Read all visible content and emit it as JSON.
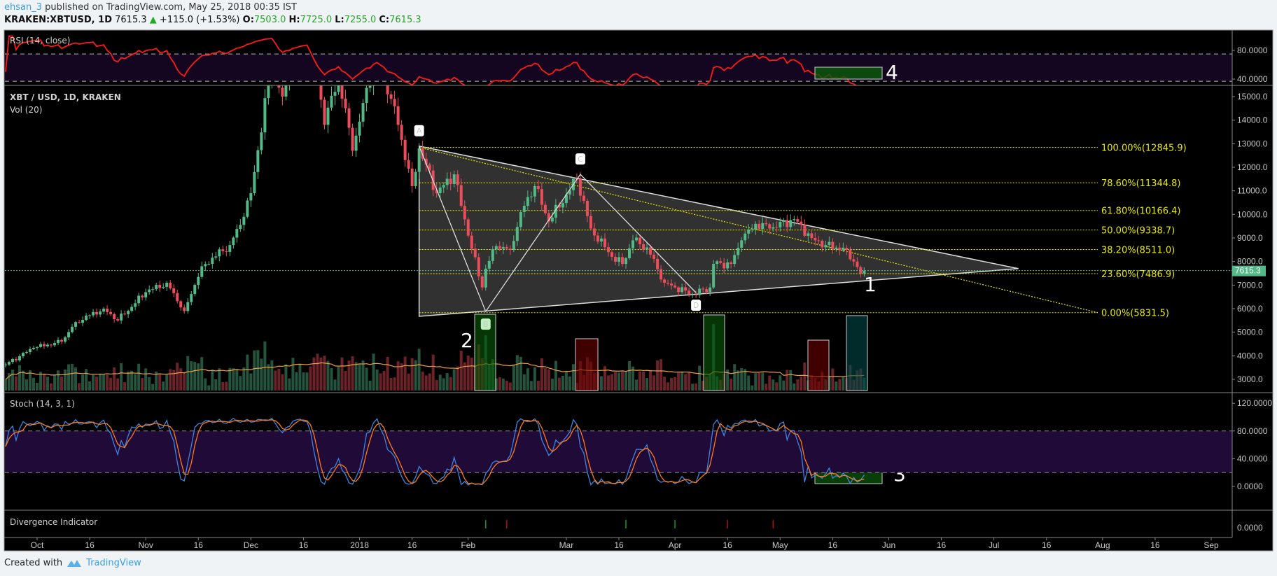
{
  "header": {
    "author": "ehsan_3",
    "published": "published on TradingView.com, May 25, 2018 00:35 IST",
    "symbol": "KRAKEN:XBTUSD, 1D",
    "last": "7615.3",
    "change": "+115.0 (+1.53%)",
    "o_label": "O:",
    "o": "7503.0",
    "h_label": "H:",
    "h": "7725.0",
    "l_label": "L:",
    "l": "7255.0",
    "c_label": "C:",
    "c": "7615.3"
  },
  "footer": {
    "created_with": "Created with",
    "brand": "TradingView"
  },
  "colors": {
    "up": "#53b987",
    "down": "#eb4d5c",
    "rsi": "#ff1a1a",
    "stoch_k": "#3d85e0",
    "stoch_d": "#ff7a1a",
    "fib": "#e8e800",
    "price_line": "#53b987"
  },
  "chart_data": {
    "type": "candlestick",
    "title": "XBT / USD, 1D, KRAKEN",
    "volume_label": "Vol (20)",
    "rsi_label": "RSI (14, close)",
    "stoch_label": "Stoch (14, 3, 1)",
    "divergence_label": "Divergence Indicator",
    "close_anchors": [
      [
        "2017-09-22",
        3630
      ],
      [
        "2017-09-30",
        4340
      ],
      [
        "2017-10-08",
        4600
      ],
      [
        "2017-10-12",
        5430
      ],
      [
        "2017-10-20",
        6000
      ],
      [
        "2017-10-24",
        5500
      ],
      [
        "2017-11-01",
        6700
      ],
      [
        "2017-11-07",
        7100
      ],
      [
        "2017-11-12",
        5900
      ],
      [
        "2017-11-17",
        7800
      ],
      [
        "2017-11-25",
        8700
      ],
      [
        "2017-11-29",
        9900
      ],
      [
        "2017-12-01",
        10900
      ],
      [
        "2017-12-07",
        16500
      ],
      [
        "2017-12-10",
        15000
      ],
      [
        "2017-12-17",
        19100
      ],
      [
        "2017-12-22",
        13800
      ],
      [
        "2017-12-26",
        15900
      ],
      [
        "2017-12-30",
        12700
      ],
      [
        "2018-01-06",
        17100
      ],
      [
        "2018-01-10",
        14900
      ],
      [
        "2018-01-12",
        13800
      ],
      [
        "2018-01-16",
        11200
      ],
      [
        "2018-01-18",
        12800
      ],
      [
        "2018-01-23",
        10900
      ],
      [
        "2018-01-28",
        11700
      ],
      [
        "2018-02-01",
        9100
      ],
      [
        "2018-02-05",
        6900
      ],
      [
        "2018-02-06",
        7700
      ],
      [
        "2018-02-09",
        8650
      ],
      [
        "2018-02-13",
        8500
      ],
      [
        "2018-02-16",
        10100
      ],
      [
        "2018-02-20",
        11200
      ],
      [
        "2018-02-24",
        9700
      ],
      [
        "2018-03-04",
        11500
      ],
      [
        "2018-03-08",
        9400
      ],
      [
        "2018-03-14",
        8200
      ],
      [
        "2018-03-17",
        7900
      ],
      [
        "2018-03-20",
        8900
      ],
      [
        "2018-03-24",
        8600
      ],
      [
        "2018-03-29",
        7100
      ],
      [
        "2018-04-01",
        6900
      ],
      [
        "2018-04-06",
        6600
      ],
      [
        "2018-04-11",
        6900
      ],
      [
        "2018-04-12",
        7900
      ],
      [
        "2018-04-17",
        7900
      ],
      [
        "2018-04-20",
        8900
      ],
      [
        "2018-04-24",
        9600
      ],
      [
        "2018-04-28",
        9400
      ],
      [
        "2018-05-05",
        9800
      ],
      [
        "2018-05-10",
        9000
      ],
      [
        "2018-05-14",
        8700
      ],
      [
        "2018-05-20",
        8500
      ],
      [
        "2018-05-22",
        8000
      ],
      [
        "2018-05-24",
        7500
      ],
      [
        "2018-05-25",
        7615.3
      ]
    ],
    "last_price": 7615.3,
    "last_price_label": "7615.3",
    "price_axis": {
      "range": [
        2500,
        15500
      ],
      "ticks": [
        15000,
        14000,
        13000,
        12000,
        11000,
        10000,
        9000,
        8000,
        7000,
        6000,
        5000,
        4000,
        3000
      ],
      "labels": [
        "15000.0",
        "14000.0",
        "13000.0",
        "12000.0",
        "11000.0",
        "10000.0",
        "9000.0",
        "8000.0",
        "7000.0",
        "6000.0",
        "5000.0",
        "4000.0",
        "3000.0"
      ]
    },
    "rsi_axis": {
      "ticks": [
        80,
        40
      ],
      "labels": [
        "80.0000",
        "40.0000"
      ],
      "bands": [
        75,
        37
      ]
    },
    "stoch_axis": {
      "ticks": [
        120,
        80,
        40,
        0
      ],
      "labels": [
        "120.0000",
        "80.0000",
        "40.0000",
        "0.0000"
      ],
      "bands": [
        80,
        20
      ]
    },
    "divergence_axis": {
      "labels": [
        "0.0000"
      ]
    },
    "time_axis": [
      {
        "label": "Oct",
        "date": "2017-10-01"
      },
      {
        "label": "16",
        "date": "2017-10-16"
      },
      {
        "label": "Nov",
        "date": "2017-11-01"
      },
      {
        "label": "16",
        "date": "2017-11-16"
      },
      {
        "label": "Dec",
        "date": "2017-12-01"
      },
      {
        "label": "16",
        "date": "2017-12-16"
      },
      {
        "label": "2018",
        "date": "2018-01-01"
      },
      {
        "label": "16",
        "date": "2018-01-16"
      },
      {
        "label": "Feb",
        "date": "2018-02-01"
      },
      {
        "label": "Mar",
        "date": "2018-03-01"
      },
      {
        "label": "16",
        "date": "2018-03-16"
      },
      {
        "label": "Apr",
        "date": "2018-04-01"
      },
      {
        "label": "16",
        "date": "2018-04-16"
      },
      {
        "label": "May",
        "date": "2018-05-01"
      },
      {
        "label": "16",
        "date": "2018-05-16"
      },
      {
        "label": "Jun",
        "date": "2018-06-01"
      },
      {
        "label": "16",
        "date": "2018-06-16"
      },
      {
        "label": "Jul",
        "date": "2018-07-01"
      },
      {
        "label": "16",
        "date": "2018-07-16"
      },
      {
        "label": "Aug",
        "date": "2018-08-01"
      },
      {
        "label": "16",
        "date": "2018-08-16"
      },
      {
        "label": "Sep",
        "date": "2018-09-01"
      }
    ],
    "fib_levels": [
      {
        "label": "100.00%(12845.9)",
        "price": 12845.9
      },
      {
        "label": "78.60%(11344.8)",
        "price": 11344.8
      },
      {
        "label": "61.80%(10166.4)",
        "price": 10166.4
      },
      {
        "label": "50.00%(9338.7)",
        "price": 9338.7
      },
      {
        "label": "38.20%(8511.0)",
        "price": 8511.0
      },
      {
        "label": "23.60%(7486.9)",
        "price": 7486.9
      },
      {
        "label": "0.00%(5831.5)",
        "price": 5831.5
      }
    ],
    "pattern_points": [
      {
        "label": "A",
        "date": "2018-01-18",
        "price": 12900
      },
      {
        "label": "B",
        "date": "2018-02-06",
        "price": 5880
      },
      {
        "label": "C",
        "date": "2018-03-05",
        "price": 11700
      },
      {
        "label": "D",
        "date": "2018-04-07",
        "price": 6680
      }
    ],
    "triangle_apex": {
      "date": "2018-07-08",
      "price": 7700
    },
    "annotations": [
      {
        "label": "1",
        "panel": "price"
      },
      {
        "label": "2",
        "panel": "volume"
      },
      {
        "label": "3",
        "panel": "stoch"
      },
      {
        "label": "4",
        "panel": "rsi"
      }
    ],
    "divergence_marks": [
      {
        "date": "2018-02-06",
        "type": "bullish"
      },
      {
        "date": "2018-02-12",
        "type": "bearish"
      },
      {
        "date": "2018-03-18",
        "type": "bullish"
      },
      {
        "date": "2018-04-01",
        "type": "bullish"
      },
      {
        "date": "2018-04-16",
        "type": "bearish"
      },
      {
        "date": "2018-04-29",
        "type": "bearish"
      }
    ]
  }
}
